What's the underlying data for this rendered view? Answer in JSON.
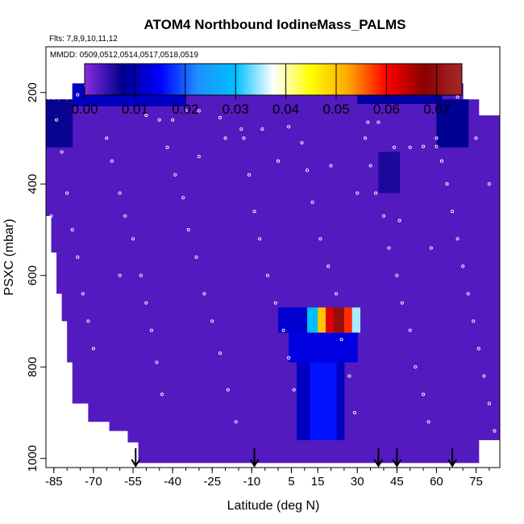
{
  "chart_data": {
    "type": "heatmap",
    "title": "ATOM4 Northbound IodineMass_PALMS",
    "subtitle_flights": "Flts: 7,8,9,10,11,12",
    "subtitle_dates": "MMDD: 0509,0512,0514,0517,0518,0519",
    "xlabel": "Latitude (deg N)",
    "ylabel": "PSXC (mbar)",
    "xlim": [
      -88,
      84
    ],
    "ylim": [
      1020,
      100
    ],
    "x_ticks": [
      -85,
      -70,
      -55,
      -40,
      -25,
      -10,
      5,
      15,
      30,
      45,
      60,
      75
    ],
    "y_ticks": [
      200,
      400,
      600,
      800,
      1000
    ],
    "colorbar": {
      "range": [
        0,
        0.075
      ],
      "ticks": [
        "0.00",
        "0.01",
        "0.02",
        "0.03",
        "0.04",
        "0.05",
        "0.06",
        "0.07"
      ],
      "colors": [
        "#8a2be2",
        "#00008b",
        "#0000ff",
        "#1e90ff",
        "#00bfff",
        "#ffffff",
        "#ffff00",
        "#ffa500",
        "#ff0000",
        "#8b0000",
        "#a52a2a"
      ]
    },
    "background_value": 0.003,
    "column_extents": [
      {
        "lat_min": -88,
        "lat_max": -86,
        "p_top": 215,
        "p_bottom": 470
      },
      {
        "lat_min": -86,
        "lat_max": -84,
        "p_top": 215,
        "p_bottom": 550
      },
      {
        "lat_min": -84,
        "lat_max": -82,
        "p_top": 215,
        "p_bottom": 640
      },
      {
        "lat_min": -82,
        "lat_max": -80,
        "p_top": 215,
        "p_bottom": 700
      },
      {
        "lat_min": -80,
        "lat_max": -78,
        "p_top": 215,
        "p_bottom": 790
      },
      {
        "lat_min": -78,
        "lat_max": -72,
        "p_top": 185,
        "p_bottom": 880
      },
      {
        "lat_min": -72,
        "lat_max": -64,
        "p_top": 185,
        "p_bottom": 920
      },
      {
        "lat_min": -64,
        "lat_max": -57,
        "p_top": 185,
        "p_bottom": 940
      },
      {
        "lat_min": -57,
        "lat_max": -53,
        "p_top": 185,
        "p_bottom": 965
      },
      {
        "lat_min": -53,
        "lat_max": 70,
        "p_top": 180,
        "p_bottom": 1010
      },
      {
        "lat_min": 70,
        "lat_max": 76,
        "p_top": 215,
        "p_bottom": 1010
      },
      {
        "lat_min": 76,
        "lat_max": 84,
        "p_top": 250,
        "p_bottom": 960
      }
    ],
    "features": [
      {
        "lat_min": -78,
        "lat_max": -35,
        "p_min": 180,
        "p_max": 230,
        "value": 0.011
      },
      {
        "lat_min": -35,
        "lat_max": 30,
        "p_min": 180,
        "p_max": 205,
        "value": 0.012
      },
      {
        "lat_min": 30,
        "lat_max": 62,
        "p_min": 180,
        "p_max": 225,
        "value": 0.009
      },
      {
        "lat_min": -88,
        "lat_max": -78,
        "p_min": 215,
        "p_max": 320,
        "value": 0.007
      },
      {
        "lat_min": 60,
        "lat_max": 72,
        "p_min": 215,
        "p_max": 320,
        "value": 0.008
      },
      {
        "lat_min": 38,
        "lat_max": 46,
        "p_min": 330,
        "p_max": 420,
        "value": 0.006
      },
      {
        "lat_min": 0,
        "lat_max": 14,
        "p_min": 670,
        "p_max": 725,
        "value": 0.012
      },
      {
        "lat_min": 11,
        "lat_max": 15,
        "p_min": 670,
        "p_max": 725,
        "value": 0.03
      },
      {
        "lat_min": 15,
        "lat_max": 18,
        "p_min": 670,
        "p_max": 725,
        "value": 0.05
      },
      {
        "lat_min": 18,
        "lat_max": 21,
        "p_min": 670,
        "p_max": 725,
        "value": 0.062
      },
      {
        "lat_min": 21,
        "lat_max": 25,
        "p_min": 670,
        "p_max": 725,
        "value": 0.07
      },
      {
        "lat_min": 25,
        "lat_max": 28,
        "p_min": 670,
        "p_max": 725,
        "value": 0.058
      },
      {
        "lat_min": 28,
        "lat_max": 31,
        "p_min": 670,
        "p_max": 725,
        "value": 0.035
      },
      {
        "lat_min": 12,
        "lat_max": 29,
        "p_min": 725,
        "p_max": 790,
        "value": 0.034
      },
      {
        "lat_min": 4,
        "lat_max": 30,
        "p_min": 725,
        "p_max": 790,
        "value": 0.013
      },
      {
        "lat_min": 7,
        "lat_max": 25,
        "p_min": 790,
        "p_max": 960,
        "value": 0.011
      },
      {
        "lat_min": 12,
        "lat_max": 22,
        "p_min": 790,
        "p_max": 960,
        "value": 0.016
      }
    ],
    "flight_track_dots": [
      [
        -87,
        212
      ],
      [
        -85,
        212
      ],
      [
        -83,
        212
      ],
      [
        -80,
        212
      ],
      [
        -76,
        205
      ],
      [
        -73,
        185
      ],
      [
        -70,
        185
      ],
      [
        -67,
        185
      ],
      [
        -64,
        185
      ],
      [
        -61,
        185
      ],
      [
        -50,
        250
      ],
      [
        -45,
        260
      ],
      [
        -40,
        260
      ],
      [
        -35,
        240
      ],
      [
        -30,
        240
      ],
      [
        -22,
        255
      ],
      [
        -14,
        280
      ],
      [
        -6,
        280
      ],
      [
        4,
        275
      ],
      [
        34,
        265
      ],
      [
        38,
        265
      ],
      [
        44,
        320
      ],
      [
        50,
        320
      ],
      [
        55,
        318
      ],
      [
        60,
        318
      ],
      [
        68,
        210
      ],
      [
        72,
        208
      ],
      [
        -84,
        260
      ],
      [
        -82,
        330
      ],
      [
        -80,
        420
      ],
      [
        -78,
        500
      ],
      [
        -76,
        560
      ],
      [
        -74,
        640
      ],
      [
        -72,
        700
      ],
      [
        -70,
        760
      ],
      [
        -65,
        300
      ],
      [
        -63,
        350
      ],
      [
        -60,
        420
      ],
      [
        -58,
        470
      ],
      [
        -55,
        520
      ],
      [
        -52,
        600
      ],
      [
        -50,
        660
      ],
      [
        -48,
        720
      ],
      [
        -46,
        790
      ],
      [
        -44,
        860
      ],
      [
        -42,
        320
      ],
      [
        -39,
        380
      ],
      [
        -36,
        430
      ],
      [
        -34,
        500
      ],
      [
        -31,
        560
      ],
      [
        -28,
        640
      ],
      [
        -25,
        700
      ],
      [
        -22,
        770
      ],
      [
        -19,
        850
      ],
      [
        -16,
        920
      ],
      [
        -13,
        300
      ],
      [
        -11,
        380
      ],
      [
        -9,
        460
      ],
      [
        -7,
        520
      ],
      [
        -4,
        600
      ],
      [
        -1,
        660
      ],
      [
        2,
        720
      ],
      [
        4,
        780
      ],
      [
        6,
        850
      ],
      [
        9,
        310
      ],
      [
        11,
        370
      ],
      [
        13,
        440
      ],
      [
        16,
        520
      ],
      [
        19,
        580
      ],
      [
        22,
        640
      ],
      [
        24,
        740
      ],
      [
        27,
        820
      ],
      [
        29,
        900
      ],
      [
        33,
        300
      ],
      [
        35,
        360
      ],
      [
        37,
        420
      ],
      [
        40,
        470
      ],
      [
        42,
        540
      ],
      [
        45,
        600
      ],
      [
        47,
        660
      ],
      [
        50,
        720
      ],
      [
        52,
        800
      ],
      [
        55,
        860
      ],
      [
        57,
        920
      ],
      [
        60,
        300
      ],
      [
        62,
        350
      ],
      [
        64,
        400
      ],
      [
        66,
        460
      ],
      [
        68,
        520
      ],
      [
        70,
        580
      ],
      [
        72,
        640
      ],
      [
        74,
        700
      ],
      [
        76,
        760
      ],
      [
        78,
        820
      ],
      [
        80,
        880
      ],
      [
        82,
        940
      ],
      [
        -86,
        470
      ],
      [
        -20,
        300
      ],
      [
        0,
        350
      ],
      [
        20,
        360
      ],
      [
        30,
        420
      ],
      [
        46,
        480
      ],
      [
        58,
        540
      ],
      [
        75,
        300
      ],
      [
        80,
        400
      ],
      [
        -30,
        340
      ],
      [
        -60,
        600
      ]
    ],
    "arrows_lat": [
      -54,
      -9,
      38,
      45,
      66
    ]
  }
}
